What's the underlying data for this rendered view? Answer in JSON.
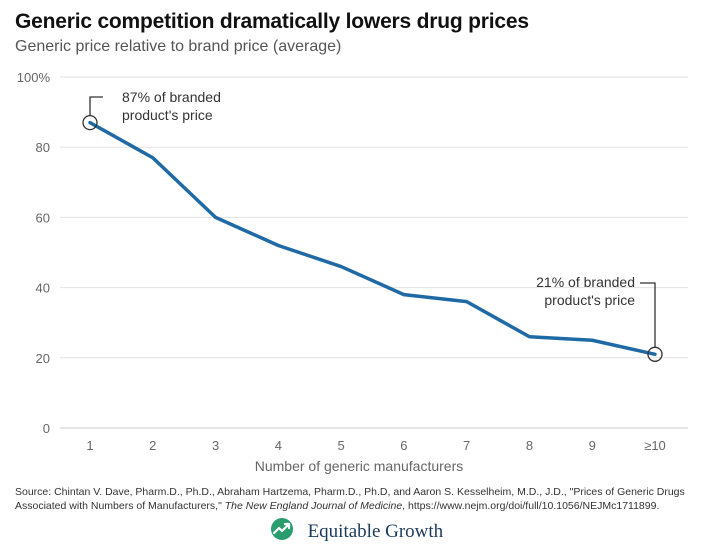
{
  "title": "Generic competition dramatically lowers drug prices",
  "subtitle": "Generic price relative to brand price (average)",
  "chart_data": {
    "type": "line",
    "categories": [
      "1",
      "2",
      "3",
      "4",
      "5",
      "6",
      "7",
      "8",
      "9",
      "≥10"
    ],
    "values": [
      87,
      77,
      60,
      52,
      46,
      38,
      36,
      26,
      25,
      21
    ],
    "ylim": [
      0,
      100
    ],
    "y_ticks": [
      0,
      20,
      40,
      60,
      80,
      100
    ],
    "y_tick_labels": [
      "0",
      "20",
      "40",
      "60",
      "80",
      "100%"
    ],
    "xlabel": "Number of generic manufacturers",
    "ylabel": "",
    "grid": true,
    "line_color": "#1f6aa5",
    "annotations": [
      {
        "index": 0,
        "lines": [
          "87% of branded",
          "product's price"
        ]
      },
      {
        "index": 9,
        "lines": [
          "21% of branded",
          "product's price"
        ]
      }
    ]
  },
  "source": {
    "prefix": "Source: Chintan V. Dave, Pharm.D., Ph.D., Abraham Hartzema, Pharm.D., Ph.D, and Aaron S. Kesselheim, M.D., J.D., \"Prices of Generic Drugs Associated with Numbers of Manufacturers,\" ",
    "journal": "The New England Journal of Medicine",
    "suffix": ", https://www.nejm.org/doi/full/10.1056/NEJMc1711899."
  },
  "brand": {
    "name": "Equitable Growth",
    "logo_icon": "equitable-growth-logo-icon",
    "logo_color": "#2a9d6f"
  }
}
